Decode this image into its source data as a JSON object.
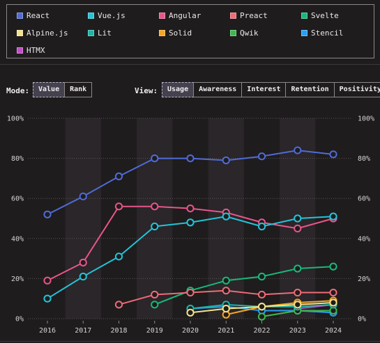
{
  "legend": [
    {
      "name": "React",
      "color": "#4f6bd8"
    },
    {
      "name": "Vue.js",
      "color": "#22c4d9"
    },
    {
      "name": "Angular",
      "color": "#e8558a"
    },
    {
      "name": "Preact",
      "color": "#ef6b78"
    },
    {
      "name": "Svelte",
      "color": "#17b97a"
    },
    {
      "name": "Alpine.js",
      "color": "#f3e38a"
    },
    {
      "name": "Lit",
      "color": "#1bb6a8"
    },
    {
      "name": "Solid",
      "color": "#f5a623"
    },
    {
      "name": "Qwik",
      "color": "#3cb84e"
    },
    {
      "name": "Stencil",
      "color": "#2a9df4"
    },
    {
      "name": "HTMX",
      "color": "#c14fc8"
    }
  ],
  "controls": {
    "mode_label": "Mode:",
    "mode_options": [
      "Value",
      "Rank"
    ],
    "mode_active": "Value",
    "view_label": "View:",
    "view_options": [
      "Usage",
      "Awareness",
      "Interest",
      "Retention",
      "Positivity"
    ],
    "view_active": "Usage"
  },
  "chart_data": {
    "type": "line",
    "x": [
      2016,
      2017,
      2018,
      2019,
      2020,
      2021,
      2022,
      2023,
      2024
    ],
    "ylim": [
      0,
      100
    ],
    "y_ticks": [
      "0%",
      "20%",
      "40%",
      "60%",
      "80%",
      "100%"
    ],
    "y_tick_values": [
      0,
      20,
      40,
      60,
      80,
      100
    ],
    "series": [
      {
        "name": "React",
        "color": "#4f6bd8",
        "values": [
          52,
          61,
          71,
          80,
          80,
          79,
          81,
          84,
          82
        ]
      },
      {
        "name": "Vue.js",
        "color": "#22c4d9",
        "values": [
          10,
          21,
          31,
          46,
          48,
          51,
          46,
          50,
          51
        ]
      },
      {
        "name": "Angular",
        "color": "#e8558a",
        "values": [
          19,
          28,
          56,
          56,
          55,
          53,
          48,
          45,
          50
        ]
      },
      {
        "name": "Preact",
        "color": "#ef6b78",
        "values": [
          null,
          null,
          7,
          12,
          13,
          14,
          12,
          13,
          13
        ]
      },
      {
        "name": "Svelte",
        "color": "#17b97a",
        "values": [
          null,
          null,
          null,
          7,
          14,
          19,
          21,
          25,
          26
        ]
      },
      {
        "name": "Alpine.js",
        "color": "#f3e38a",
        "values": [
          null,
          null,
          null,
          null,
          3,
          5,
          6,
          7,
          8
        ]
      },
      {
        "name": "Lit",
        "color": "#1bb6a8",
        "values": [
          null,
          null,
          null,
          null,
          5,
          7,
          6,
          6,
          7
        ]
      },
      {
        "name": "Solid",
        "color": "#f5a623",
        "values": [
          null,
          null,
          null,
          null,
          null,
          2,
          6,
          8,
          9
        ]
      },
      {
        "name": "Qwik",
        "color": "#3cb84e",
        "values": [
          null,
          null,
          null,
          null,
          null,
          null,
          1,
          4,
          4
        ]
      },
      {
        "name": "Stencil",
        "color": "#2a9df4",
        "values": [
          null,
          null,
          null,
          null,
          5,
          6,
          4,
          4,
          3
        ]
      },
      {
        "name": "HTMX",
        "color": "#c14fc8",
        "values": [
          null,
          null,
          null,
          null,
          null,
          null,
          null,
          5,
          7
        ]
      }
    ]
  }
}
